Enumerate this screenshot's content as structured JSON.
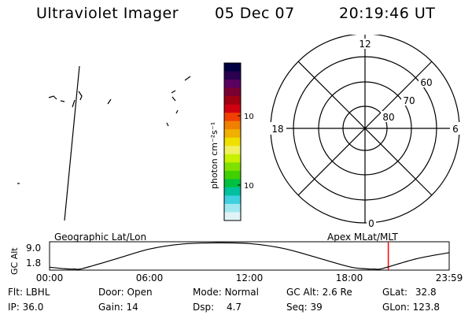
{
  "header": {
    "instrument": "Ultraviolet Imager",
    "date": "05 Dec 07",
    "time": "20:19:46 UT"
  },
  "colorbar": {
    "label": "photon cm⁻²s⁻¹",
    "ticks": [
      "100",
      "10"
    ],
    "colors": [
      "#000040",
      "#2a0050",
      "#5a0060",
      "#7a0030",
      "#a00010",
      "#d00010",
      "#f04000",
      "#f08000",
      "#f0b000",
      "#f0e000",
      "#f0f060",
      "#c8f000",
      "#80e000",
      "#40d000",
      "#00c040",
      "#00c0a0",
      "#40d0e0",
      "#a0e8f0",
      "#e0f4f8"
    ]
  },
  "polar_plot": {
    "mlt_labels": [
      "12",
      "18",
      "6",
      "0"
    ],
    "lat_labels": [
      "60",
      "70",
      "80"
    ]
  },
  "altitude_panel": {
    "left_title": "Geographic Lat/Lon",
    "right_title": "Apex MLat/MLT",
    "ylabel": "GC Alt",
    "yticks": [
      "9.0",
      "1.8"
    ],
    "xticks": [
      "00:00",
      "06:00",
      "12:00",
      "18:00",
      "23:59"
    ],
    "marker_color": "#ff0000"
  },
  "chart_data": {
    "type": "line",
    "title": "",
    "xlabel": "",
    "ylabel": "GC Alt",
    "x": [
      0,
      1,
      1.5,
      2,
      4,
      6,
      8,
      10,
      12,
      14,
      16,
      18,
      19,
      19.5,
      20,
      22,
      23.983
    ],
    "y": [
      2.3,
      1.85,
      1.8,
      1.95,
      4.6,
      7.3,
      8.7,
      9.0,
      8.8,
      7.5,
      5.0,
      2.4,
      1.85,
      1.8,
      1.95,
      4.6,
      6.3
    ],
    "xlim": [
      0,
      23.983
    ],
    "ylim": [
      1.5,
      9.3
    ],
    "marker_x": 20.33
  },
  "info": {
    "row1": [
      {
        "label": "Flt:",
        "value": "LBHL"
      },
      {
        "label": "Door:",
        "value": "Open"
      },
      {
        "label": "Mode:",
        "value": "Normal"
      },
      {
        "label": "GC Alt:",
        "value": "2.6 Re"
      },
      {
        "label": "GLat:",
        "value": "32.8"
      }
    ],
    "row2": [
      {
        "label": "IP:",
        "value": "36.0"
      },
      {
        "label": "Gain:",
        "value": "14"
      },
      {
        "label": "Dsp:",
        "value": "4.7"
      },
      {
        "label": "Seq:",
        "value": "39"
      },
      {
        "label": "GLon:",
        "value": "123.8"
      }
    ]
  }
}
